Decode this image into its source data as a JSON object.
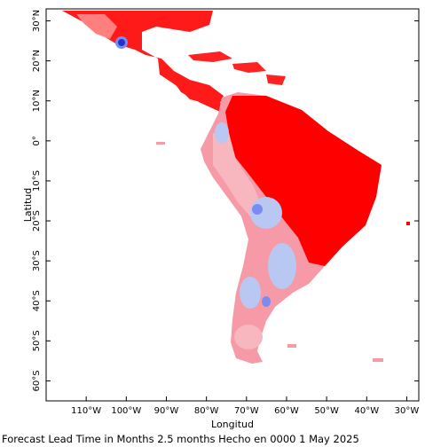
{
  "map": {
    "x_axis_title": "Longitud",
    "y_axis_title": "Latitud",
    "lon_range": [
      -120,
      -27
    ],
    "lat_range": [
      -65,
      33
    ],
    "lon_ticks": [
      {
        "value": -110,
        "label": "110°W"
      },
      {
        "value": -100,
        "label": "100°W"
      },
      {
        "value": -90,
        "label": "90°W"
      },
      {
        "value": -80,
        "label": "80°W"
      },
      {
        "value": -70,
        "label": "70°W"
      },
      {
        "value": -60,
        "label": "60°W"
      },
      {
        "value": -50,
        "label": "50°W"
      },
      {
        "value": -40,
        "label": "40°W"
      },
      {
        "value": -30,
        "label": "30°W"
      }
    ],
    "lat_ticks": [
      {
        "value": 30,
        "label": "30°N"
      },
      {
        "value": 20,
        "label": "20°N"
      },
      {
        "value": 10,
        "label": "10°N"
      },
      {
        "value": 0,
        "label": "0°"
      },
      {
        "value": -10,
        "label": "10°S"
      },
      {
        "value": -20,
        "label": "20°S"
      },
      {
        "value": -30,
        "label": "30°S"
      },
      {
        "value": -40,
        "label": "40°S"
      },
      {
        "value": -50,
        "label": "50°S"
      },
      {
        "value": -60,
        "label": "60°S"
      }
    ],
    "colors": {
      "strong_positive": "#ff0000",
      "positive": "#ff4d4d",
      "weak_positive": "#f59aa6",
      "weak_negative": "#b9c8f2",
      "negative": "#7a8cf2",
      "strong_negative": "#2233cc",
      "neutral": "#ffffff",
      "frame": "#000000"
    }
  },
  "caption": "Forecast Lead Time in Months 2.5 months Hecho en 0000 1 May 2025"
}
